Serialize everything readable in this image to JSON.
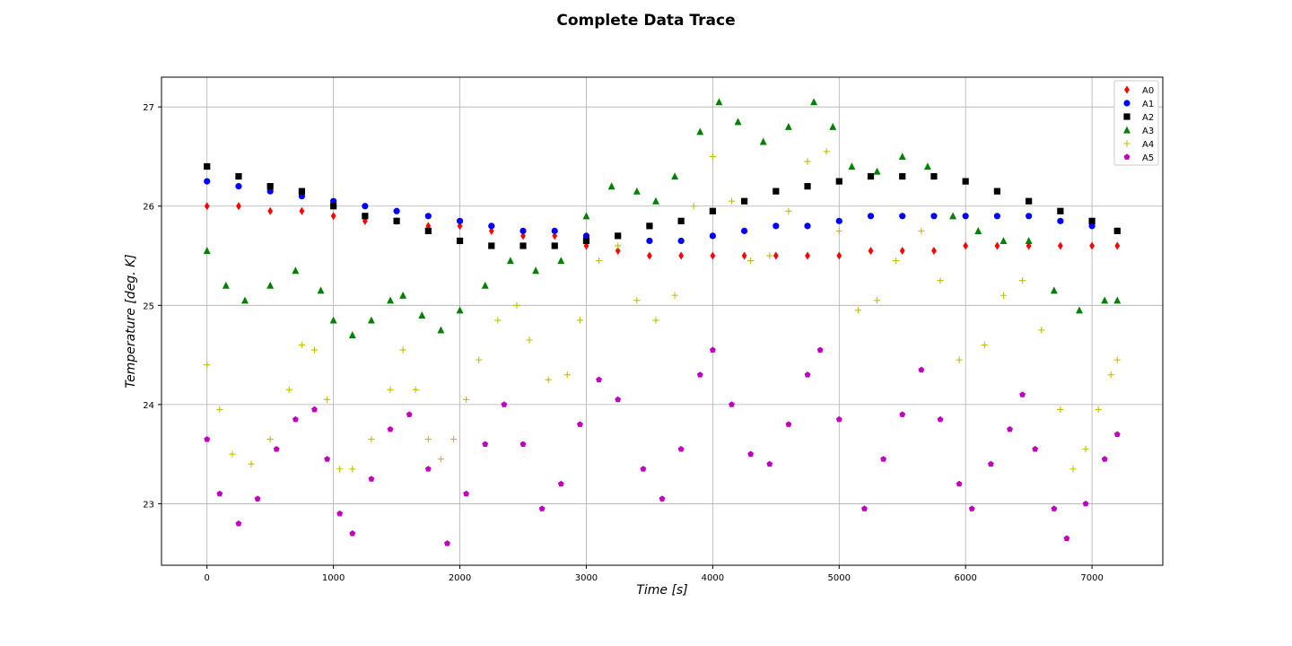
{
  "chart_data": {
    "type": "scatter",
    "title": "Complete Data Trace",
    "xlabel": "Time [s]",
    "ylabel": "Temperature [deg. K]",
    "xlim": [
      -360,
      7560
    ],
    "ylim": [
      22.38,
      27.3
    ],
    "xticks": [
      0,
      1000,
      2000,
      3000,
      4000,
      5000,
      6000,
      7000
    ],
    "yticks": [
      23,
      24,
      25,
      26,
      27
    ],
    "grid": true,
    "legend_position": "top-right",
    "series": [
      {
        "name": "A0",
        "color": "#ff0000",
        "marker": "diamond",
        "points": [
          [
            0,
            26.0
          ],
          [
            250,
            26.0
          ],
          [
            500,
            25.95
          ],
          [
            750,
            25.95
          ],
          [
            1000,
            25.9
          ],
          [
            1250,
            25.85
          ],
          [
            1500,
            25.85
          ],
          [
            1750,
            25.8
          ],
          [
            2000,
            25.8
          ],
          [
            2250,
            25.75
          ],
          [
            2500,
            25.7
          ],
          [
            2750,
            25.7
          ],
          [
            3000,
            25.6
          ],
          [
            3250,
            25.55
          ],
          [
            3500,
            25.5
          ],
          [
            3750,
            25.5
          ],
          [
            4000,
            25.5
          ],
          [
            4250,
            25.5
          ],
          [
            4500,
            25.5
          ],
          [
            4750,
            25.5
          ],
          [
            5000,
            25.5
          ],
          [
            5250,
            25.55
          ],
          [
            5500,
            25.55
          ],
          [
            5750,
            25.55
          ],
          [
            6000,
            25.6
          ],
          [
            6250,
            25.6
          ],
          [
            6500,
            25.6
          ],
          [
            6750,
            25.6
          ],
          [
            7000,
            25.6
          ],
          [
            7200,
            25.6
          ]
        ]
      },
      {
        "name": "A1",
        "color": "#0000ff",
        "marker": "circle",
        "points": [
          [
            0,
            26.25
          ],
          [
            250,
            26.2
          ],
          [
            500,
            26.15
          ],
          [
            750,
            26.1
          ],
          [
            1000,
            26.05
          ],
          [
            1250,
            26.0
          ],
          [
            1500,
            25.95
          ],
          [
            1750,
            25.9
          ],
          [
            2000,
            25.85
          ],
          [
            2250,
            25.8
          ],
          [
            2500,
            25.75
          ],
          [
            2750,
            25.75
          ],
          [
            3000,
            25.7
          ],
          [
            3250,
            25.7
          ],
          [
            3500,
            25.65
          ],
          [
            3750,
            25.65
          ],
          [
            4000,
            25.7
          ],
          [
            4250,
            25.75
          ],
          [
            4500,
            25.8
          ],
          [
            4750,
            25.8
          ],
          [
            5000,
            25.85
          ],
          [
            5250,
            25.9
          ],
          [
            5500,
            25.9
          ],
          [
            5750,
            25.9
          ],
          [
            6000,
            25.9
          ],
          [
            6250,
            25.9
          ],
          [
            6500,
            25.9
          ],
          [
            6750,
            25.85
          ],
          [
            7000,
            25.8
          ],
          [
            7200,
            25.75
          ]
        ]
      },
      {
        "name": "A2",
        "color": "#000000",
        "marker": "square",
        "points": [
          [
            0,
            26.4
          ],
          [
            250,
            26.3
          ],
          [
            500,
            26.2
          ],
          [
            750,
            26.15
          ],
          [
            1000,
            26.0
          ],
          [
            1250,
            25.9
          ],
          [
            1500,
            25.85
          ],
          [
            1750,
            25.75
          ],
          [
            2000,
            25.65
          ],
          [
            2250,
            25.6
          ],
          [
            2500,
            25.6
          ],
          [
            2750,
            25.6
          ],
          [
            3000,
            25.65
          ],
          [
            3250,
            25.7
          ],
          [
            3500,
            25.8
          ],
          [
            3750,
            25.85
          ],
          [
            4000,
            25.95
          ],
          [
            4250,
            26.05
          ],
          [
            4500,
            26.15
          ],
          [
            4750,
            26.2
          ],
          [
            5000,
            26.25
          ],
          [
            5250,
            26.3
          ],
          [
            5500,
            26.3
          ],
          [
            5750,
            26.3
          ],
          [
            6000,
            26.25
          ],
          [
            6250,
            26.15
          ],
          [
            6500,
            26.05
          ],
          [
            6750,
            25.95
          ],
          [
            7000,
            25.85
          ],
          [
            7200,
            25.75
          ]
        ]
      },
      {
        "name": "A3",
        "color": "#008000",
        "marker": "triangle",
        "points": [
          [
            0,
            25.55
          ],
          [
            150,
            25.2
          ],
          [
            300,
            25.05
          ],
          [
            500,
            25.2
          ],
          [
            700,
            25.35
          ],
          [
            900,
            25.15
          ],
          [
            1000,
            24.85
          ],
          [
            1150,
            24.7
          ],
          [
            1300,
            24.85
          ],
          [
            1450,
            25.05
          ],
          [
            1550,
            25.1
          ],
          [
            1700,
            24.9
          ],
          [
            1850,
            24.75
          ],
          [
            2000,
            24.95
          ],
          [
            2200,
            25.2
          ],
          [
            2400,
            25.45
          ],
          [
            2600,
            25.35
          ],
          [
            2800,
            25.45
          ],
          [
            3000,
            25.9
          ],
          [
            3200,
            26.2
          ],
          [
            3400,
            26.15
          ],
          [
            3550,
            26.05
          ],
          [
            3700,
            26.3
          ],
          [
            3900,
            26.75
          ],
          [
            4050,
            27.05
          ],
          [
            4200,
            26.85
          ],
          [
            4400,
            26.65
          ],
          [
            4600,
            26.8
          ],
          [
            4800,
            27.05
          ],
          [
            4950,
            26.8
          ],
          [
            5100,
            26.4
          ],
          [
            5300,
            26.35
          ],
          [
            5500,
            26.5
          ],
          [
            5700,
            26.4
          ],
          [
            5900,
            25.9
          ],
          [
            6100,
            25.75
          ],
          [
            6300,
            25.65
          ],
          [
            6500,
            25.65
          ],
          [
            6700,
            25.15
          ],
          [
            6900,
            24.95
          ],
          [
            7100,
            25.05
          ],
          [
            7200,
            25.05
          ]
        ]
      },
      {
        "name": "A4",
        "color": "#bfbf00",
        "marker": "plus",
        "points": [
          [
            0,
            24.4
          ],
          [
            100,
            23.95
          ],
          [
            200,
            23.5
          ],
          [
            350,
            23.4
          ],
          [
            500,
            23.65
          ],
          [
            650,
            24.15
          ],
          [
            750,
            24.6
          ],
          [
            850,
            24.55
          ],
          [
            950,
            24.05
          ],
          [
            1050,
            23.35
          ],
          [
            1150,
            23.35
          ],
          [
            1300,
            23.65
          ],
          [
            1450,
            24.15
          ],
          [
            1550,
            24.55
          ],
          [
            1650,
            24.15
          ],
          [
            1750,
            23.65
          ],
          [
            1850,
            23.45
          ],
          [
            1950,
            23.65
          ],
          [
            2050,
            24.05
          ],
          [
            2150,
            24.45
          ],
          [
            2300,
            24.85
          ],
          [
            2450,
            25.0
          ],
          [
            2550,
            24.65
          ],
          [
            2700,
            24.25
          ],
          [
            2850,
            24.3
          ],
          [
            2950,
            24.85
          ],
          [
            3100,
            25.45
          ],
          [
            3250,
            25.6
          ],
          [
            3400,
            25.05
          ],
          [
            3550,
            24.85
          ],
          [
            3700,
            25.1
          ],
          [
            3850,
            26.0
          ],
          [
            4000,
            26.5
          ],
          [
            4150,
            26.05
          ],
          [
            4300,
            25.45
          ],
          [
            4450,
            25.5
          ],
          [
            4600,
            25.95
          ],
          [
            4750,
            26.45
          ],
          [
            4900,
            26.55
          ],
          [
            5000,
            25.75
          ],
          [
            5150,
            24.95
          ],
          [
            5300,
            25.05
          ],
          [
            5450,
            25.45
          ],
          [
            5650,
            25.75
          ],
          [
            5800,
            25.25
          ],
          [
            5950,
            24.45
          ],
          [
            6150,
            24.6
          ],
          [
            6300,
            25.1
          ],
          [
            6450,
            25.25
          ],
          [
            6600,
            24.75
          ],
          [
            6750,
            23.95
          ],
          [
            6850,
            23.35
          ],
          [
            6950,
            23.55
          ],
          [
            7050,
            23.95
          ],
          [
            7150,
            24.3
          ],
          [
            7200,
            24.45
          ]
        ]
      },
      {
        "name": "A5",
        "color": "#bf00bf",
        "marker": "pentagon",
        "points": [
          [
            0,
            23.65
          ],
          [
            100,
            23.1
          ],
          [
            250,
            22.8
          ],
          [
            400,
            23.05
          ],
          [
            550,
            23.55
          ],
          [
            700,
            23.85
          ],
          [
            850,
            23.95
          ],
          [
            950,
            23.45
          ],
          [
            1050,
            22.9
          ],
          [
            1150,
            22.7
          ],
          [
            1300,
            23.25
          ],
          [
            1450,
            23.75
          ],
          [
            1600,
            23.9
          ],
          [
            1750,
            23.35
          ],
          [
            1900,
            22.6
          ],
          [
            2050,
            23.1
          ],
          [
            2200,
            23.6
          ],
          [
            2350,
            24.0
          ],
          [
            2500,
            23.6
          ],
          [
            2650,
            22.95
          ],
          [
            2800,
            23.2
          ],
          [
            2950,
            23.8
          ],
          [
            3100,
            24.25
          ],
          [
            3250,
            24.05
          ],
          [
            3450,
            23.35
          ],
          [
            3600,
            23.05
          ],
          [
            3750,
            23.55
          ],
          [
            3900,
            24.3
          ],
          [
            4000,
            24.55
          ],
          [
            4150,
            24.0
          ],
          [
            4300,
            23.5
          ],
          [
            4450,
            23.4
          ],
          [
            4600,
            23.8
          ],
          [
            4750,
            24.3
          ],
          [
            4850,
            24.55
          ],
          [
            5000,
            23.85
          ],
          [
            5200,
            22.95
          ],
          [
            5350,
            23.45
          ],
          [
            5500,
            23.9
          ],
          [
            5650,
            24.35
          ],
          [
            5800,
            23.85
          ],
          [
            5950,
            23.2
          ],
          [
            6050,
            22.95
          ],
          [
            6200,
            23.4
          ],
          [
            6350,
            23.75
          ],
          [
            6450,
            24.1
          ],
          [
            6550,
            23.55
          ],
          [
            6700,
            22.95
          ],
          [
            6800,
            22.65
          ],
          [
            6950,
            23.0
          ],
          [
            7100,
            23.45
          ],
          [
            7200,
            23.7
          ]
        ]
      }
    ]
  }
}
